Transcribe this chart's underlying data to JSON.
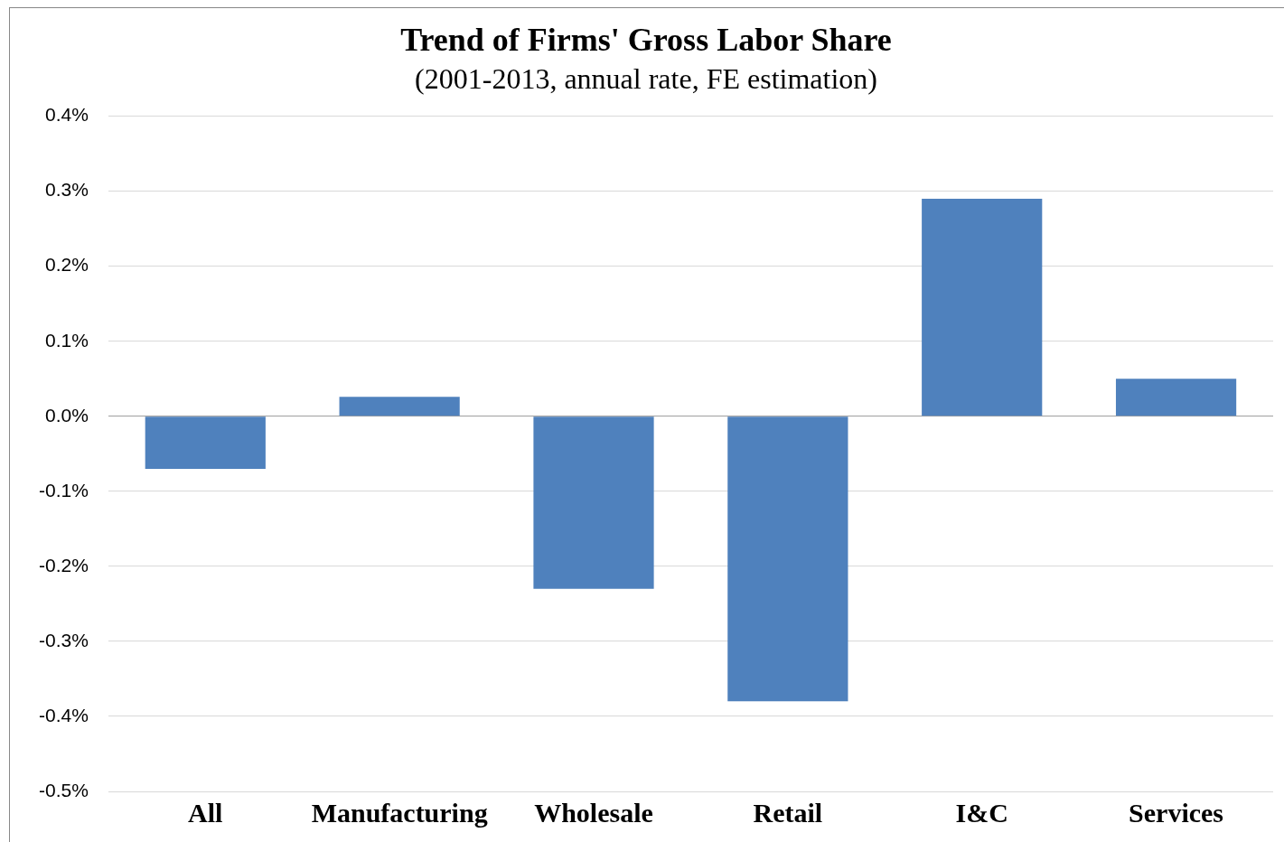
{
  "chart_data": {
    "type": "bar",
    "title": "Trend of Firms' Gross Labor Share",
    "subtitle": "(2001-2013, annual rate, FE estimation)",
    "categories": [
      "All",
      "Manufacturing",
      "Wholesale",
      "Retail",
      "I&C",
      "Services"
    ],
    "values": [
      -0.07,
      0.026,
      -0.23,
      -0.38,
      0.29,
      0.05
    ],
    "color": "#4f81bd",
    "ylim": [
      -0.5,
      0.4
    ],
    "yticks": [
      {
        "value": -0.5,
        "label": "-0.5%"
      },
      {
        "value": -0.4,
        "label": "-0.4%"
      },
      {
        "value": -0.3,
        "label": "-0.3%"
      },
      {
        "value": -0.2,
        "label": "-0.2%"
      },
      {
        "value": -0.1,
        "label": "-0.1%"
      },
      {
        "value": 0,
        "label": "0.0%"
      },
      {
        "value": 0.1,
        "label": "0.1%"
      },
      {
        "value": 0.2,
        "label": "0.2%"
      },
      {
        "value": 0.3,
        "label": "0.3%"
      },
      {
        "value": 0.4,
        "label": "0.4%"
      }
    ],
    "grid": "y",
    "legend": false
  }
}
